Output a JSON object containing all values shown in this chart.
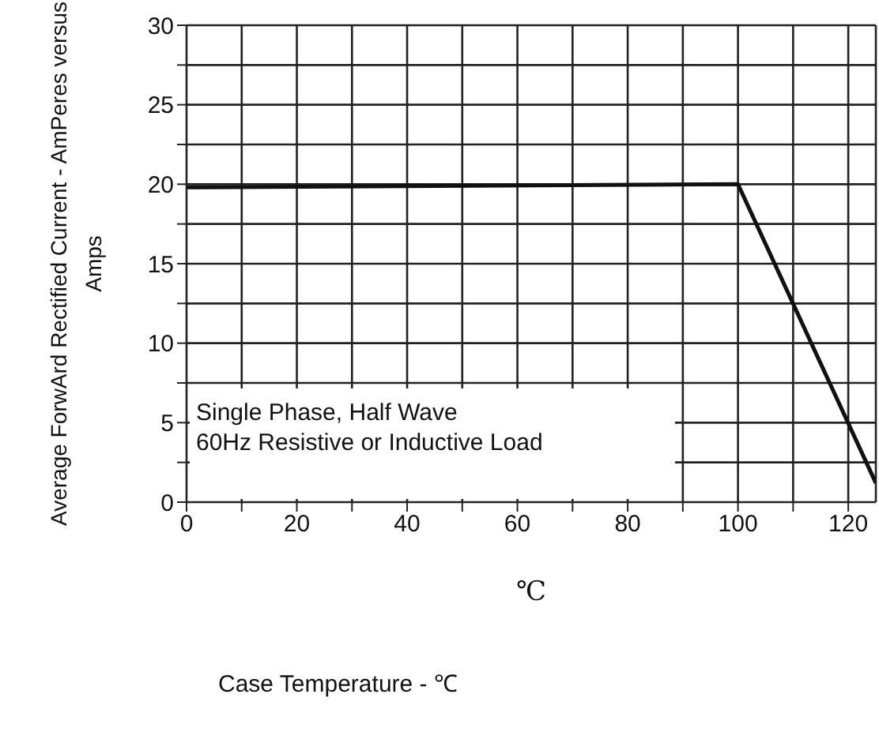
{
  "chart_data": {
    "type": "line",
    "xlabel": "℃",
    "ylabel": "Average ForwArd Rectified Current - AmPeres versus\nAmps",
    "annotations": [
      "Single Phase, Half Wave\n60Hz Resistive or Inductive Load",
      "Case Temperature - ℃"
    ],
    "series": [
      {
        "color": "#111111",
        "x": [
          0,
          100,
          125
        ],
        "values": [
          19.8,
          20,
          1.2
        ]
      }
    ],
    "xlim": [
      0,
      125
    ],
    "xticks": [
      0,
      {
        "value": 10,
        "label": null
      },
      20,
      {
        "value": 30,
        "label": null
      },
      40,
      {
        "value": 50,
        "label": null
      },
      60,
      {
        "value": 70,
        "label": null
      },
      80,
      {
        "value": 90,
        "label": null
      },
      100,
      {
        "value": 110,
        "label": null
      },
      120
    ],
    "ylim": [
      0,
      30
    ],
    "yticks": [
      0,
      {
        "value": 2.5,
        "label": null
      },
      5,
      {
        "value": 7.5,
        "label": null
      },
      10,
      {
        "value": 12.5,
        "label": null
      },
      15,
      {
        "value": 17.5,
        "label": null
      },
      20,
      {
        "value": 22.5,
        "label": null
      },
      25,
      {
        "value": 27.5,
        "label": null
      },
      30
    ],
    "grid": true,
    "marker": "none",
    "line_style": "solid"
  }
}
